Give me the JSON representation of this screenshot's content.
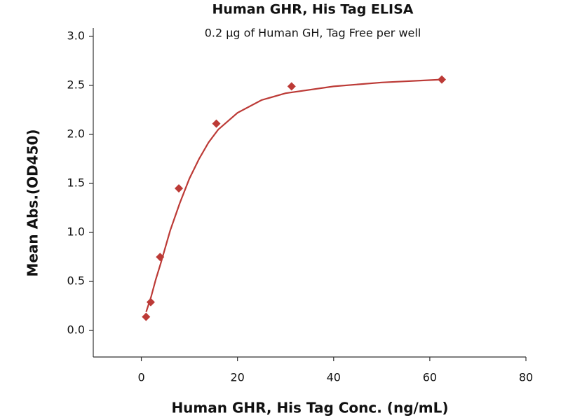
{
  "chart_data": {
    "type": "scatter",
    "title": "Human GHR, His Tag ELISA",
    "subtitle": "0.2 μg of Human GH, Tag Free per well",
    "x_label": "Human GHR, His Tag Conc. (ng/mL)",
    "y_label": "Mean Abs.(OD450)",
    "x": [
      0.98,
      1.95,
      3.9,
      7.8,
      15.6,
      31.25,
      62.5
    ],
    "values": [
      0.14,
      0.29,
      0.75,
      1.45,
      2.11,
      2.49,
      2.56
    ],
    "color": "#bc3a36",
    "fit_x": [
      1,
      2,
      3,
      4,
      6,
      8,
      10,
      12,
      14,
      16,
      20,
      25,
      30,
      40,
      50,
      62.5
    ],
    "fit_values": [
      0.19,
      0.34,
      0.52,
      0.68,
      1.02,
      1.3,
      1.55,
      1.75,
      1.92,
      2.05,
      2.22,
      2.35,
      2.42,
      2.49,
      2.53,
      2.56
    ],
    "xlim": [
      -10,
      80
    ],
    "xticks": [
      0,
      20,
      40,
      60,
      80
    ],
    "ylim": [
      -0.27,
      3.0
    ],
    "yticks": [
      {
        "value": 0,
        "label": "0.0"
      },
      0.5,
      {
        "value": 1,
        "label": "1.0"
      },
      1.5,
      {
        "value": 2,
        "label": "2.0"
      },
      2.5,
      {
        "value": 3,
        "label": "3.0"
      }
    ]
  }
}
